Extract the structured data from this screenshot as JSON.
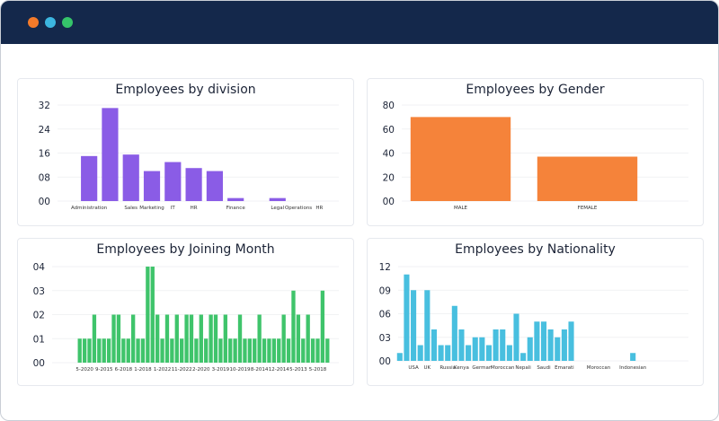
{
  "window": {
    "dots": [
      {
        "name": "close",
        "color": "#f47b2a"
      },
      {
        "name": "minimize",
        "color": "#3cb6e0"
      },
      {
        "name": "maximize",
        "color": "#35c46a"
      }
    ],
    "header_color": "#14284b"
  },
  "chart_data": [
    {
      "id": "division",
      "type": "bar",
      "title": "Employees by division",
      "color": "#8a5ce6",
      "categories": [
        "Administration",
        "",
        "Sales",
        "Marketing",
        "IT",
        "HR",
        "",
        "Finance",
        "",
        "Legal",
        "Operations",
        "HR"
      ],
      "values": [
        15,
        31,
        15.5,
        10,
        13,
        11,
        10,
        1,
        0,
        1,
        0,
        0
      ],
      "yticks": [
        "00",
        "08",
        "16",
        "24",
        "32"
      ],
      "ylim": [
        0,
        32
      ],
      "grid": true
    },
    {
      "id": "gender",
      "type": "bar",
      "title": "Employees by Gender",
      "color": "#f5833a",
      "categories": [
        "MALE",
        "FEMALE"
      ],
      "values": [
        70,
        37
      ],
      "yticks": [
        "00",
        "20",
        "40",
        "60",
        "80"
      ],
      "ylim": [
        0,
        80
      ],
      "grid": true
    },
    {
      "id": "joining",
      "type": "bar",
      "title": "Employees by Joining Month",
      "color": "#3fc46b",
      "categories": [
        "",
        "5-2020",
        "",
        "",
        "",
        "9-2015",
        "",
        "",
        "",
        "6-2018",
        "",
        "",
        "",
        "1-2018",
        "",
        "",
        "",
        "1-2022",
        "",
        "",
        "",
        "11-2022",
        "",
        "",
        "",
        "2-2020",
        "",
        "",
        "",
        "3-2019",
        "",
        "",
        "",
        "10-2019",
        "",
        "",
        "",
        "8-2014",
        "",
        "",
        "",
        "12-2014",
        "",
        "",
        "",
        "5-2013",
        "",
        "",
        "",
        "5-2018",
        "",
        ""
      ],
      "values": [
        1,
        1,
        1,
        2,
        1,
        1,
        1,
        2,
        2,
        1,
        1,
        2,
        1,
        1,
        4,
        4,
        2,
        1,
        2,
        1,
        2,
        1,
        2,
        2,
        1,
        2,
        1,
        2,
        2,
        1,
        2,
        1,
        1,
        2,
        1,
        1,
        1,
        2,
        1,
        1,
        1,
        1,
        2,
        1,
        3,
        2,
        1,
        2,
        1,
        1,
        3,
        1
      ],
      "yticks": [
        "00",
        "01",
        "02",
        "03",
        "04"
      ],
      "ylim": [
        0,
        4
      ],
      "grid": true
    },
    {
      "id": "nationality",
      "type": "bar",
      "title": "Employees by Nationality",
      "color": "#48bfdf",
      "categories": [
        "",
        "",
        "USA",
        "",
        "UK",
        "",
        "",
        "Russia",
        "",
        "Kenya",
        "",
        "",
        "German",
        "",
        "",
        "Moroccan",
        "",
        "",
        "Nepali",
        "",
        "",
        "Saudi",
        "",
        "",
        "Emarati",
        "",
        "",
        "",
        "",
        "Moroccan",
        "",
        "",
        "",
        "",
        "Indonesian"
      ],
      "values": [
        1,
        11,
        9,
        2,
        9,
        4,
        2,
        2,
        7,
        4,
        2,
        3,
        3,
        2,
        4,
        4,
        2,
        6,
        1,
        3,
        5,
        5,
        4,
        3,
        4,
        5,
        0,
        0,
        0,
        0,
        0,
        0,
        0,
        0,
        1
      ],
      "yticks": [
        "00",
        "03",
        "06",
        "09",
        "12"
      ],
      "ylim": [
        0,
        12
      ],
      "grid": true
    }
  ]
}
